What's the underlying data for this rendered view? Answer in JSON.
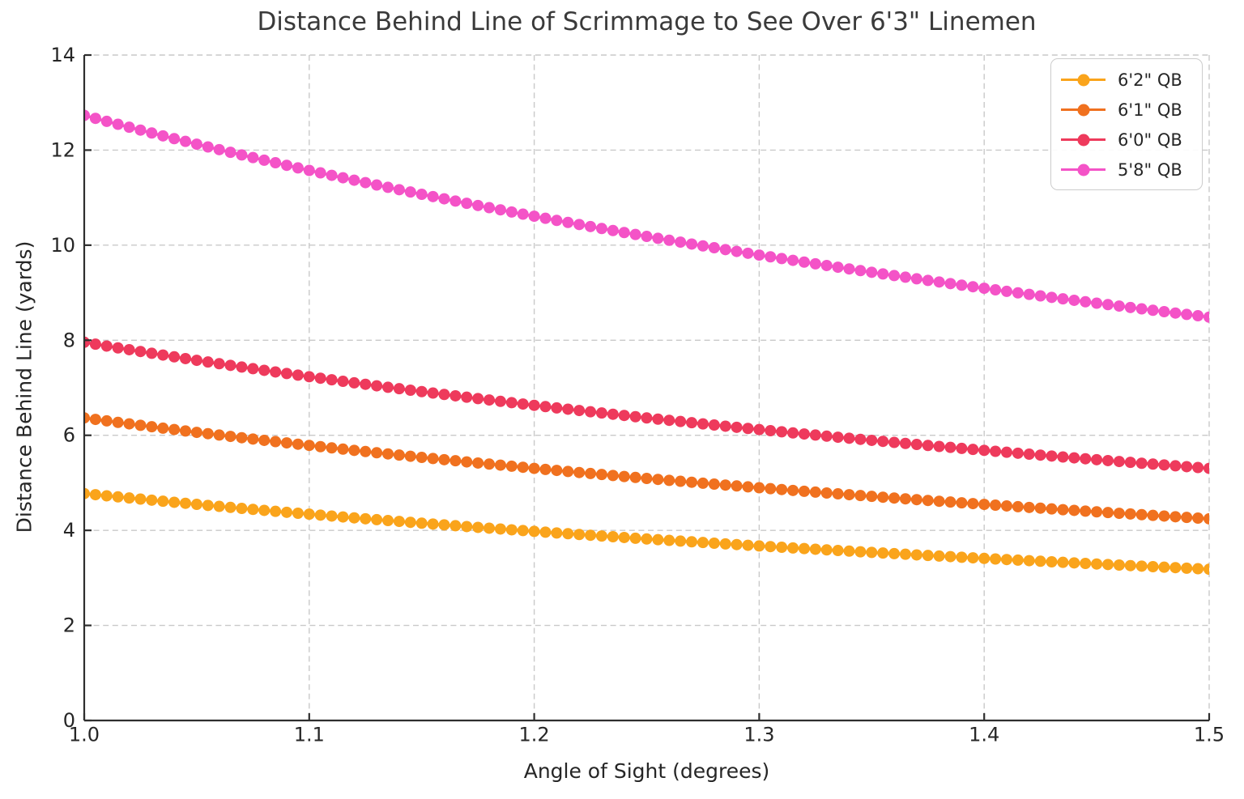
{
  "chart_data": {
    "type": "line",
    "title": "Distance Behind Line of Scrimmage to See Over 6'3\" Linemen",
    "xlabel": "Angle of Sight (degrees)",
    "ylabel": "Distance Behind Line (yards)",
    "xlim": [
      1.0,
      1.5
    ],
    "ylim": [
      0,
      14
    ],
    "xticks": [
      "1.0",
      "1.1",
      "1.2",
      "1.3",
      "1.4",
      "1.5"
    ],
    "yticks": [
      "0",
      "2",
      "4",
      "6",
      "8",
      "10",
      "12",
      "14"
    ],
    "grid": true,
    "grid_style": "dashed",
    "legend_position": "upper right",
    "marker": "o",
    "colors": {
      "grid": "#c9c9c9",
      "spine": "#2e2e2e",
      "text": "#262626",
      "title": "#3a3a3a"
    },
    "x": [
      1.0,
      1.005,
      1.01,
      1.015,
      1.02,
      1.025,
      1.03,
      1.035,
      1.04,
      1.045,
      1.05,
      1.055,
      1.06,
      1.065,
      1.07,
      1.075,
      1.08,
      1.085,
      1.09,
      1.095,
      1.1,
      1.105,
      1.11,
      1.115,
      1.12,
      1.125,
      1.13,
      1.135,
      1.14,
      1.145,
      1.15,
      1.155,
      1.16,
      1.165,
      1.17,
      1.175,
      1.18,
      1.185,
      1.19,
      1.195,
      1.2,
      1.205,
      1.21,
      1.215,
      1.22,
      1.225,
      1.23,
      1.235,
      1.24,
      1.245,
      1.25,
      1.255,
      1.26,
      1.265,
      1.27,
      1.275,
      1.28,
      1.285,
      1.29,
      1.295,
      1.3,
      1.305,
      1.31,
      1.315,
      1.32,
      1.325,
      1.33,
      1.335,
      1.34,
      1.345,
      1.35,
      1.355,
      1.36,
      1.365,
      1.37,
      1.375,
      1.38,
      1.385,
      1.39,
      1.395,
      1.4,
      1.405,
      1.41,
      1.415,
      1.42,
      1.425,
      1.43,
      1.435,
      1.44,
      1.445,
      1.45,
      1.455,
      1.46,
      1.465,
      1.47,
      1.475,
      1.48,
      1.485,
      1.49,
      1.495,
      1.5
    ],
    "series": [
      {
        "name": "6'2\" QB",
        "color": "#faa41b",
        "values": [
          4.774,
          4.75,
          4.727,
          4.704,
          4.681,
          4.658,
          4.635,
          4.613,
          4.591,
          4.569,
          4.547,
          4.525,
          4.504,
          4.483,
          4.462,
          4.441,
          4.42,
          4.4,
          4.38,
          4.36,
          4.34,
          4.32,
          4.301,
          4.282,
          4.263,
          4.244,
          4.225,
          4.206,
          4.188,
          4.169,
          4.151,
          4.133,
          4.116,
          4.098,
          4.08,
          4.063,
          4.046,
          4.029,
          4.012,
          3.995,
          3.978,
          3.962,
          3.945,
          3.929,
          3.913,
          3.897,
          3.881,
          3.866,
          3.85,
          3.834,
          3.819,
          3.804,
          3.789,
          3.774,
          3.759,
          3.744,
          3.73,
          3.715,
          3.701,
          3.686,
          3.672,
          3.658,
          3.644,
          3.63,
          3.617,
          3.603,
          3.589,
          3.576,
          3.563,
          3.549,
          3.536,
          3.523,
          3.51,
          3.497,
          3.484,
          3.472,
          3.459,
          3.447,
          3.434,
          3.422,
          3.41,
          3.398,
          3.386,
          3.374,
          3.362,
          3.35,
          3.338,
          3.327,
          3.315,
          3.304,
          3.292,
          3.281,
          3.27,
          3.258,
          3.247,
          3.236,
          3.225,
          3.215,
          3.204,
          3.193,
          3.182
        ]
      },
      {
        "name": "6'1\" QB",
        "color": "#f0711f",
        "values": [
          6.366,
          6.334,
          6.303,
          6.271,
          6.241,
          6.21,
          6.18,
          6.15,
          6.121,
          6.091,
          6.062,
          6.034,
          6.005,
          5.977,
          5.949,
          5.921,
          5.894,
          5.867,
          5.84,
          5.813,
          5.787,
          5.761,
          5.735,
          5.709,
          5.683,
          5.658,
          5.633,
          5.608,
          5.584,
          5.559,
          5.535,
          5.511,
          5.487,
          5.464,
          5.44,
          5.417,
          5.394,
          5.372,
          5.349,
          5.327,
          5.304,
          5.282,
          5.261,
          5.239,
          5.217,
          5.196,
          5.175,
          5.154,
          5.133,
          5.113,
          5.092,
          5.072,
          5.052,
          5.032,
          5.012,
          4.992,
          4.973,
          4.953,
          4.934,
          4.915,
          4.896,
          4.877,
          4.859,
          4.84,
          4.822,
          4.804,
          4.786,
          4.768,
          4.75,
          4.732,
          4.715,
          4.697,
          4.68,
          4.663,
          4.646,
          4.629,
          4.612,
          4.596,
          4.579,
          4.563,
          4.546,
          4.53,
          4.514,
          4.498,
          4.482,
          4.467,
          4.451,
          4.435,
          4.42,
          4.405,
          4.39,
          4.374,
          4.359,
          4.345,
          4.33,
          4.315,
          4.301,
          4.286,
          4.272,
          4.257,
          4.243
        ]
      },
      {
        "name": "6'0\" QB",
        "color": "#ee3a5c",
        "values": [
          7.957,
          7.917,
          7.878,
          7.839,
          7.801,
          7.763,
          7.725,
          7.688,
          7.651,
          7.614,
          7.578,
          7.542,
          7.506,
          7.471,
          7.436,
          7.402,
          7.367,
          7.333,
          7.3,
          7.266,
          7.233,
          7.201,
          7.168,
          7.136,
          7.104,
          7.073,
          7.041,
          7.01,
          6.98,
          6.949,
          6.919,
          6.889,
          6.859,
          6.83,
          6.801,
          6.772,
          6.743,
          6.714,
          6.686,
          6.658,
          6.63,
          6.603,
          6.576,
          6.549,
          6.522,
          6.495,
          6.469,
          6.443,
          6.417,
          6.391,
          6.365,
          6.34,
          6.315,
          6.29,
          6.265,
          6.24,
          6.216,
          6.192,
          6.168,
          6.144,
          6.12,
          6.097,
          6.074,
          6.05,
          6.028,
          6.005,
          5.982,
          5.96,
          5.938,
          5.915,
          5.894,
          5.872,
          5.85,
          5.829,
          5.807,
          5.786,
          5.765,
          5.745,
          5.724,
          5.703,
          5.683,
          5.663,
          5.643,
          5.623,
          5.603,
          5.583,
          5.564,
          5.544,
          5.525,
          5.506,
          5.487,
          5.468,
          5.449,
          5.431,
          5.412,
          5.394,
          5.376,
          5.358,
          5.34,
          5.322,
          5.304
        ]
      },
      {
        "name": "5'8\" QB",
        "color": "#f453c7",
        "values": [
          12.731,
          12.668,
          12.605,
          12.543,
          12.481,
          12.421,
          12.36,
          12.3,
          12.241,
          12.183,
          12.125,
          12.067,
          12.01,
          11.954,
          11.898,
          11.843,
          11.788,
          11.734,
          11.68,
          11.626,
          11.573,
          11.521,
          11.469,
          11.418,
          11.367,
          11.316,
          11.266,
          11.217,
          11.167,
          11.119,
          11.07,
          11.022,
          10.975,
          10.928,
          10.881,
          10.835,
          10.789,
          10.743,
          10.698,
          10.653,
          10.609,
          10.565,
          10.521,
          10.478,
          10.435,
          10.392,
          10.35,
          10.308,
          10.266,
          10.225,
          10.184,
          10.144,
          10.103,
          10.064,
          10.024,
          9.985,
          9.946,
          9.907,
          9.868,
          9.83,
          9.792,
          9.755,
          9.718,
          9.681,
          9.644,
          9.608,
          9.572,
          9.536,
          9.5,
          9.465,
          9.43,
          9.395,
          9.36,
          9.326,
          9.292,
          9.258,
          9.225,
          9.191,
          9.158,
          9.125,
          9.093,
          9.06,
          9.028,
          8.996,
          8.965,
          8.933,
          8.902,
          8.871,
          8.84,
          8.809,
          8.779,
          8.749,
          8.719,
          8.689,
          8.66,
          8.63,
          8.601,
          8.572,
          8.543,
          8.515,
          8.486
        ]
      }
    ]
  }
}
